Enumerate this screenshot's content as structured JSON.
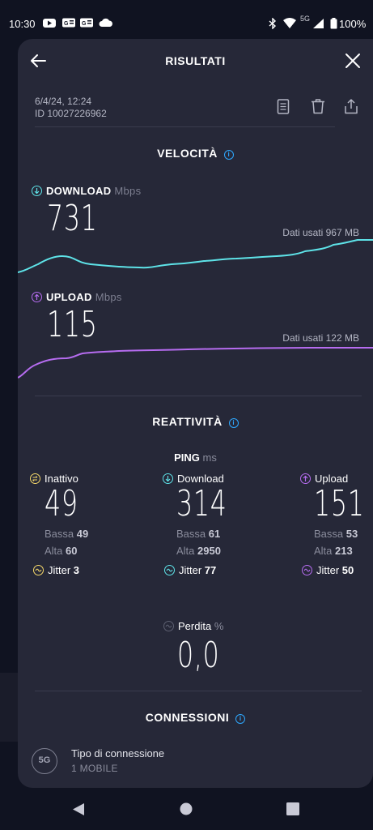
{
  "status_bar": {
    "time": "10:30",
    "network": "5G",
    "battery": "100%",
    "notification_icons": [
      "youtube-icon",
      "news-icon",
      "news-icon",
      "cloud-icon"
    ]
  },
  "header": {
    "title": "RISULTATI",
    "back_icon": "arrow-left-icon",
    "close_icon": "close-icon"
  },
  "meta": {
    "date": "6/4/24, 12:24",
    "id": "ID 10027226962",
    "actions": [
      "document-icon",
      "trash-icon",
      "share-icon"
    ]
  },
  "speed": {
    "title": "VELOCITÀ",
    "download": {
      "label": "DOWNLOAD",
      "unit": "Mbps",
      "value": "731",
      "data_used": "Dati usati 967 MB",
      "color": "#5ee3e8"
    },
    "upload": {
      "label": "UPLOAD",
      "unit": "Mbps",
      "value": "115",
      "data_used": "Dati usati 122 MB",
      "color": "#b66cf0"
    }
  },
  "responsiveness": {
    "title": "REATTIVITÀ",
    "ping_label": "PING",
    "ping_unit": "ms",
    "idle": {
      "label": "Inattivo",
      "value": "49",
      "low_label": "Bassa",
      "low": "49",
      "high_label": "Alta",
      "high": "60",
      "jitter_label": "Jitter",
      "jitter": "3",
      "color": "#f5d86a"
    },
    "download": {
      "label": "Download",
      "value": "314",
      "low_label": "Bassa",
      "low": "61",
      "high_label": "Alta",
      "high": "2950",
      "jitter_label": "Jitter",
      "jitter": "77",
      "color": "#5ee3e8"
    },
    "upload": {
      "label": "Upload",
      "value": "151",
      "low_label": "Bassa",
      "low": "53",
      "high_label": "Alta",
      "high": "213",
      "jitter_label": "Jitter",
      "jitter": "50",
      "color": "#b66cf0"
    },
    "loss": {
      "label": "Perdita",
      "unit": "%",
      "value": "0,0"
    }
  },
  "connections": {
    "title": "CONNESSIONI",
    "badge": "5G",
    "type_label": "Tipo di connessione",
    "type_value": "1 MOBILE"
  },
  "nav": [
    "back-icon",
    "home-icon",
    "recents-icon"
  ]
}
